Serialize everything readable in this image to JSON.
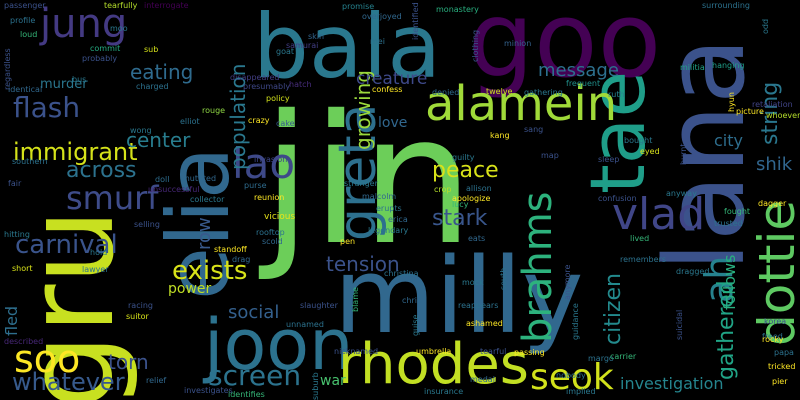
{
  "words": [
    {
      "text": "jin",
      "color": "#6cce59"
    },
    {
      "text": "gru",
      "color": "#c8e020"
    },
    {
      "text": "lana",
      "color": "#3b528b"
    },
    {
      "text": "milly",
      "color": "#31688e"
    },
    {
      "text": "bala",
      "color": "#2a788e"
    },
    {
      "text": "goo",
      "color": "#440154"
    },
    {
      "text": "elia",
      "color": "#31688e"
    },
    {
      "text": "joon",
      "color": "#2c728e"
    },
    {
      "text": "rhodes",
      "color": "#c2df23"
    },
    {
      "text": "tae",
      "color": "#1f9e89"
    },
    {
      "text": "greta",
      "color": "#2d708e"
    },
    {
      "text": "alamein",
      "color": "#a0da39"
    },
    {
      "text": "dottie",
      "color": "#5ec962"
    },
    {
      "text": "jung",
      "color": "#443a83"
    },
    {
      "text": "lao",
      "color": "#3e4989"
    },
    {
      "text": "seok",
      "color": "#d2e21b"
    },
    {
      "text": "vlad",
      "color": "#404688"
    },
    {
      "text": "brahms",
      "color": "#2db27d"
    },
    {
      "text": "soo",
      "color": "#fde725"
    },
    {
      "text": "ah",
      "color": "#26828e"
    },
    {
      "text": "smurf",
      "color": "#3e4c8a"
    },
    {
      "text": "screen",
      "color": "#2c738e"
    },
    {
      "text": "carnival",
      "color": "#3a548c"
    },
    {
      "text": "flash",
      "color": "#3b528b"
    },
    {
      "text": "exists",
      "color": "#d8e219"
    },
    {
      "text": "immigrant",
      "color": "#d5e21a"
    },
    {
      "text": "whatever",
      "color": "#375a8c"
    },
    {
      "text": "peace",
      "color": "#d8e219"
    },
    {
      "text": "eating",
      "color": "#2f6b8e"
    },
    {
      "text": "center",
      "color": "#287d8e"
    },
    {
      "text": "across",
      "color": "#2c728e"
    },
    {
      "text": "tension",
      "color": "#3b528b"
    },
    {
      "text": "stark",
      "color": "#39568c"
    },
    {
      "text": "message",
      "color": "#2d708e"
    },
    {
      "text": "population",
      "color": "#2a788e"
    },
    {
      "text": "growing",
      "color": "#9bd93c"
    },
    {
      "text": "creature",
      "color": "#3e4989"
    },
    {
      "text": "string",
      "color": "#2a778e"
    },
    {
      "text": "citizen",
      "color": "#238a8d"
    },
    {
      "text": "gathered",
      "color": "#20a486"
    },
    {
      "text": "torn",
      "color": "#3b528b"
    },
    {
      "text": "social",
      "color": "#34608d"
    },
    {
      "text": "investigation",
      "color": "#25858e"
    },
    {
      "text": "follows",
      "color": "#29af7f"
    },
    {
      "text": "row",
      "color": "#38598c"
    },
    {
      "text": "shik",
      "color": "#31668e"
    },
    {
      "text": "city",
      "color": "#2e6e8e"
    },
    {
      "text": "fled",
      "color": "#2e6f8e"
    },
    {
      "text": "love",
      "color": "#31678e"
    },
    {
      "text": "power",
      "color": "#c0df25"
    },
    {
      "text": "war",
      "color": "#48c16e"
    },
    {
      "text": "murder",
      "color": "#2a768e"
    },
    {
      "text": "rouge",
      "color": "#8fd744"
    },
    {
      "text": "doll",
      "color": "#2e6d8e"
    },
    {
      "text": "mutated",
      "color": "#31688e"
    },
    {
      "text": "purse",
      "color": "#2f6c8e"
    },
    {
      "text": "invasion",
      "color": "#3f4788"
    },
    {
      "text": "vicious",
      "color": "#e7e419"
    },
    {
      "text": "reunion",
      "color": "#fde725"
    },
    {
      "text": "collector",
      "color": "#2a788e"
    },
    {
      "text": "unsuccessful",
      "color": "#482878"
    },
    {
      "text": "cake",
      "color": "#375b8d"
    },
    {
      "text": "crazy",
      "color": "#fde725"
    },
    {
      "text": "policy",
      "color": "#d2e21b"
    },
    {
      "text": "presumably",
      "color": "#3f4889"
    },
    {
      "text": "disappeared",
      "color": "#433e85"
    },
    {
      "text": "charged",
      "color": "#2c718e"
    },
    {
      "text": "probably",
      "color": "#3b528b"
    },
    {
      "text": "commit",
      "color": "#25ac82"
    },
    {
      "text": "tearfully",
      "color": "#b5de2b"
    },
    {
      "text": "interrogate",
      "color": "#440154"
    },
    {
      "text": "samurai",
      "color": "#433e85"
    },
    {
      "text": "promise",
      "color": "#26828e"
    },
    {
      "text": "overjoyed",
      "color": "#31688e"
    },
    {
      "text": "identified",
      "color": "#3b528b"
    },
    {
      "text": "monastery",
      "color": "#29af7f"
    },
    {
      "text": "clothing",
      "color": "#39568c"
    },
    {
      "text": "minion",
      "color": "#34618d"
    },
    {
      "text": "militia",
      "color": "#20a386"
    },
    {
      "text": "hanging",
      "color": "#1f9e89"
    },
    {
      "text": "surrounding",
      "color": "#2c728e"
    },
    {
      "text": "retaliation",
      "color": "#414487"
    },
    {
      "text": "whoever",
      "color": "#b5de2b"
    },
    {
      "text": "picture",
      "color": "#fde725"
    },
    {
      "text": "ruth",
      "color": "#26828e"
    },
    {
      "text": "gathering",
      "color": "#2a788e"
    },
    {
      "text": "twelve",
      "color": "#cde11d"
    },
    {
      "text": "denied",
      "color": "#2f6c8e"
    },
    {
      "text": "frequent",
      "color": "#21918c"
    },
    {
      "text": "confess",
      "color": "#fde725"
    },
    {
      "text": "skin",
      "color": "#32658e"
    },
    {
      "text": "mei",
      "color": "#2c728e"
    },
    {
      "text": "goat",
      "color": "#2a788e"
    },
    {
      "text": "hatch",
      "color": "#472d7b"
    },
    {
      "text": "sub",
      "color": "#d5e21a"
    },
    {
      "text": "passenger",
      "color": "#3b528b"
    },
    {
      "text": "profile",
      "color": "#2c728e"
    },
    {
      "text": "loud",
      "color": "#35b779"
    },
    {
      "text": "identical",
      "color": "#31688e"
    },
    {
      "text": "bus",
      "color": "#2a788e"
    },
    {
      "text": "regardless",
      "color": "#3b528b"
    },
    {
      "text": "southern",
      "color": "#2c728e"
    },
    {
      "text": "fair",
      "color": "#3b528b"
    },
    {
      "text": "hitting",
      "color": "#2a788e"
    },
    {
      "text": "short",
      "color": "#d8e219"
    },
    {
      "text": "described",
      "color": "#482878"
    },
    {
      "text": "hold",
      "color": "#2a788e"
    },
    {
      "text": "lawyer",
      "color": "#2c728e"
    },
    {
      "text": "racing",
      "color": "#3b528b"
    },
    {
      "text": "suitor",
      "color": "#d8e219"
    },
    {
      "text": "relief",
      "color": "#31688e"
    },
    {
      "text": "investigates",
      "color": "#3b528b"
    },
    {
      "text": "identifies",
      "color": "#35b779"
    },
    {
      "text": "rooftop",
      "color": "#2c728e"
    },
    {
      "text": "scold",
      "color": "#31688e"
    },
    {
      "text": "standoff",
      "color": "#fde725"
    },
    {
      "text": "drag",
      "color": "#31688e"
    },
    {
      "text": "slaughter",
      "color": "#3b528b"
    },
    {
      "text": "unnamed",
      "color": "#2c728e"
    },
    {
      "text": "blame",
      "color": "#35b779"
    },
    {
      "text": "nicknamed",
      "color": "#3b528b"
    },
    {
      "text": "suburb",
      "color": "#2a788e"
    },
    {
      "text": "umbrella",
      "color": "#fde725"
    },
    {
      "text": "christina",
      "color": "#2c728e"
    },
    {
      "text": "chris",
      "color": "#31688e"
    },
    {
      "text": "pen",
      "color": "#fde725"
    },
    {
      "text": "legendary",
      "color": "#2a788e"
    },
    {
      "text": "erica",
      "color": "#31688e"
    },
    {
      "text": "erupts",
      "color": "#2c728e"
    },
    {
      "text": "stranger",
      "color": "#2a788e"
    },
    {
      "text": "malcolm",
      "color": "#31688e"
    },
    {
      "text": "apologize",
      "color": "#fde725"
    },
    {
      "text": "lucy",
      "color": "#35b779"
    },
    {
      "text": "allison",
      "color": "#2c728e"
    },
    {
      "text": "guilty",
      "color": "#2a788e"
    },
    {
      "text": "crop",
      "color": "#b5de2b"
    },
    {
      "text": "eats",
      "color": "#31688e"
    },
    {
      "text": "mock",
      "color": "#2a788e"
    },
    {
      "text": "reappears",
      "color": "#2c728e"
    },
    {
      "text": "ashamed",
      "color": "#fde725"
    },
    {
      "text": "tearful",
      "color": "#3b528b"
    },
    {
      "text": "passing",
      "color": "#fde725"
    },
    {
      "text": "insurance",
      "color": "#2a788e"
    },
    {
      "text": "medal",
      "color": "#31688e"
    },
    {
      "text": "nobody",
      "color": "#2c728e"
    },
    {
      "text": "guise",
      "color": "#2a788e"
    },
    {
      "text": "south",
      "color": "#2c728e"
    },
    {
      "text": "anymore",
      "color": "#3b528b"
    },
    {
      "text": "guidance",
      "color": "#2a788e"
    },
    {
      "text": "map",
      "color": "#3b528b"
    },
    {
      "text": "sleep",
      "color": "#3b528b"
    },
    {
      "text": "eyed",
      "color": "#d8e219"
    },
    {
      "text": "bought",
      "color": "#2a788e"
    },
    {
      "text": "confusion",
      "color": "#3b528b"
    },
    {
      "text": "lived",
      "color": "#35b779"
    },
    {
      "text": "remembers",
      "color": "#2c728e"
    },
    {
      "text": "dragged",
      "color": "#2a788e"
    },
    {
      "text": "suicidal",
      "color": "#3b528b"
    },
    {
      "text": "margo",
      "color": "#2c728e"
    },
    {
      "text": "carrier",
      "color": "#35b779"
    },
    {
      "text": "implied",
      "color": "#2a788e"
    },
    {
      "text": "trusted",
      "color": "#2c728e"
    },
    {
      "text": "fought",
      "color": "#35b779"
    },
    {
      "text": "dagger",
      "color": "#fde725"
    },
    {
      "text": "anyway",
      "color": "#2a788e"
    },
    {
      "text": "burnt",
      "color": "#3b528b"
    },
    {
      "text": "freed",
      "color": "#2c728e"
    },
    {
      "text": "korea",
      "color": "#3b528b"
    },
    {
      "text": "rocky",
      "color": "#fde725"
    },
    {
      "text": "papa",
      "color": "#2c728e"
    },
    {
      "text": "tricked",
      "color": "#fde725"
    },
    {
      "text": "pier",
      "color": "#fde725"
    },
    {
      "text": "odd",
      "color": "#2a788e"
    },
    {
      "text": "hyun",
      "color": "#fde725"
    },
    {
      "text": "wong",
      "color": "#2a788e"
    },
    {
      "text": "elliot",
      "color": "#2c728e"
    },
    {
      "text": "selling",
      "color": "#3b528b"
    },
    {
      "text": "moo",
      "color": "#2a788e"
    },
    {
      "text": "sang",
      "color": "#3b528b"
    },
    {
      "text": "kang",
      "color": "#fde725"
    }
  ]
}
